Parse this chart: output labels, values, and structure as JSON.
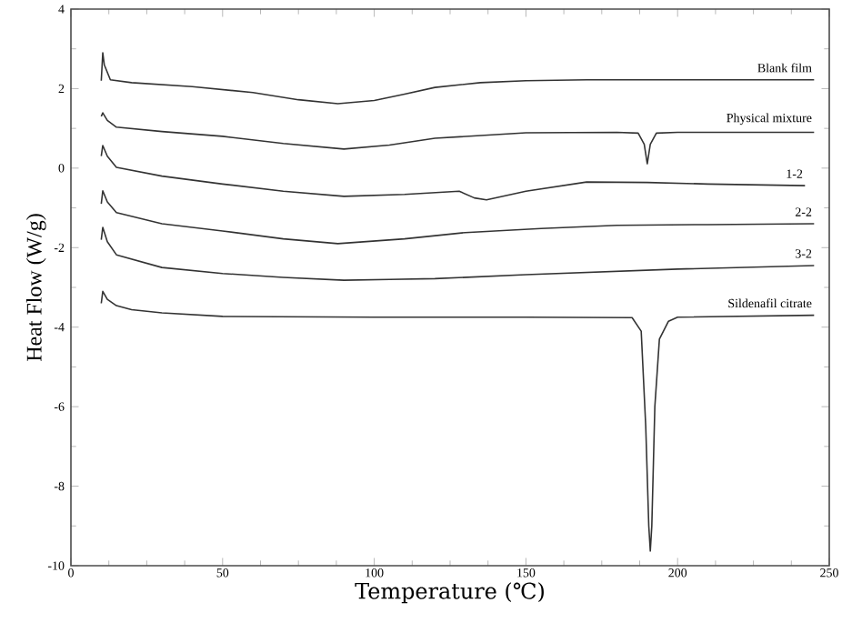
{
  "chart_data": {
    "type": "line",
    "xlabel": "Temperature (℃)",
    "ylabel": "Heat Flow (W/g)",
    "xlim": [
      0,
      250
    ],
    "ylim": [
      -10,
      4
    ],
    "xticks": [
      0,
      50,
      100,
      150,
      200,
      250
    ],
    "yticks": [
      -10,
      -8,
      -6,
      -4,
      -2,
      0,
      2,
      4
    ],
    "grid": false,
    "legend": false,
    "marker": "none",
    "line_style": "solid",
    "series": [
      {
        "name": "Blank film",
        "color": "#333333",
        "x": [
          10,
          10.5,
          11,
          13,
          20,
          40,
          60,
          75,
          88,
          100,
          110,
          120,
          135,
          150,
          170,
          200,
          245
        ],
        "values": [
          2.2,
          2.9,
          2.6,
          2.22,
          2.15,
          2.05,
          1.9,
          1.72,
          1.62,
          1.7,
          1.86,
          2.03,
          2.15,
          2.2,
          2.22,
          2.22,
          2.22
        ]
      },
      {
        "name": "Physical mixture",
        "color": "#333333",
        "x": [
          10,
          10.5,
          12,
          15,
          30,
          50,
          70,
          90,
          105,
          120,
          150,
          180,
          187,
          189,
          190,
          191,
          193,
          200,
          245
        ],
        "values": [
          1.3,
          1.39,
          1.2,
          1.03,
          0.92,
          0.8,
          0.62,
          0.48,
          0.58,
          0.75,
          0.89,
          0.9,
          0.88,
          0.6,
          0.11,
          0.6,
          0.88,
          0.9,
          0.9
        ]
      },
      {
        "name": "1-2",
        "color": "#333333",
        "x": [
          10,
          10.5,
          12,
          15,
          30,
          50,
          70,
          90,
          110,
          128,
          133,
          137,
          150,
          170,
          190,
          210,
          242
        ],
        "values": [
          0.3,
          0.57,
          0.3,
          0.02,
          -0.2,
          -0.4,
          -0.58,
          -0.71,
          -0.66,
          -0.58,
          -0.75,
          -0.8,
          -0.58,
          -0.35,
          -0.36,
          -0.4,
          -0.44
        ]
      },
      {
        "name": "2-2",
        "color": "#333333",
        "x": [
          10,
          10.5,
          12,
          15,
          30,
          50,
          70,
          88,
          110,
          130,
          155,
          180,
          210,
          245
        ],
        "values": [
          -0.9,
          -0.57,
          -0.85,
          -1.12,
          -1.4,
          -1.58,
          -1.78,
          -1.9,
          -1.78,
          -1.62,
          -1.52,
          -1.44,
          -1.42,
          -1.4
        ]
      },
      {
        "name": "3-2",
        "color": "#333333",
        "x": [
          10,
          10.5,
          12,
          15,
          30,
          50,
          70,
          90,
          105,
          120,
          150,
          200,
          245
        ],
        "values": [
          -1.8,
          -1.49,
          -1.85,
          -2.18,
          -2.5,
          -2.65,
          -2.75,
          -2.82,
          -2.8,
          -2.78,
          -2.68,
          -2.54,
          -2.45
        ]
      },
      {
        "name": "Sildenafil citrate",
        "color": "#333333",
        "x": [
          10,
          10.5,
          12,
          15,
          20,
          30,
          50,
          100,
          150,
          185,
          188,
          189.5,
          190.5,
          191,
          191.5,
          192.5,
          194,
          197,
          200,
          245
        ],
        "values": [
          -3.4,
          -3.1,
          -3.3,
          -3.46,
          -3.56,
          -3.64,
          -3.73,
          -3.75,
          -3.75,
          -3.76,
          -4.1,
          -6.5,
          -9.0,
          -9.63,
          -9.0,
          -6.0,
          -4.3,
          -3.85,
          -3.75,
          -3.7
        ]
      }
    ]
  }
}
